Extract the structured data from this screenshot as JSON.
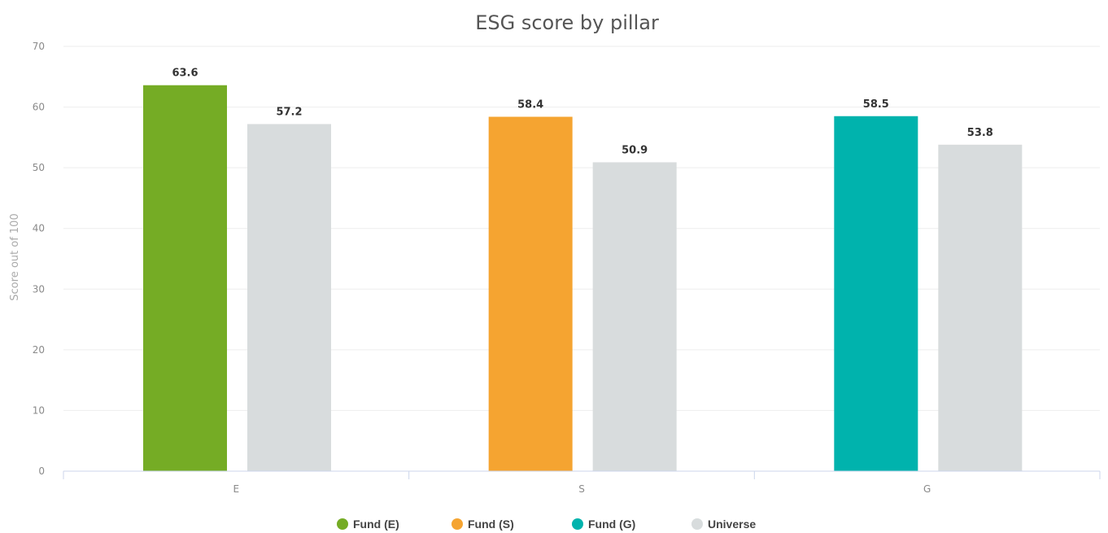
{
  "chart_data": {
    "type": "bar",
    "title": "ESG score by pillar",
    "ylabel": "Score out of 100",
    "xlabel": "",
    "ylim": [
      0,
      70
    ],
    "yticks": [
      0,
      10,
      20,
      30,
      40,
      50,
      60,
      70
    ],
    "categories": [
      "E",
      "S",
      "G"
    ],
    "grid": true,
    "legend_position": "bottom-center",
    "series": [
      {
        "name": "Fund",
        "values": [
          63.6,
          58.4,
          58.5
        ],
        "labels": [
          "63.6",
          "58.4",
          "58.5"
        ],
        "colors": [
          "#75ac25",
          "#f5a431",
          "#00b3ad"
        ]
      },
      {
        "name": "Universe",
        "values": [
          57.2,
          50.9,
          53.8
        ],
        "labels": [
          "57.2",
          "50.9",
          "53.8"
        ],
        "color": "#d8dcdd"
      }
    ],
    "legend": [
      {
        "label": "Fund (E)",
        "color": "#75ac25"
      },
      {
        "label": "Fund (S)",
        "color": "#f5a431"
      },
      {
        "label": "Fund (G)",
        "color": "#00b3ad"
      },
      {
        "label": "Universe",
        "color": "#d8dcdd"
      }
    ]
  }
}
